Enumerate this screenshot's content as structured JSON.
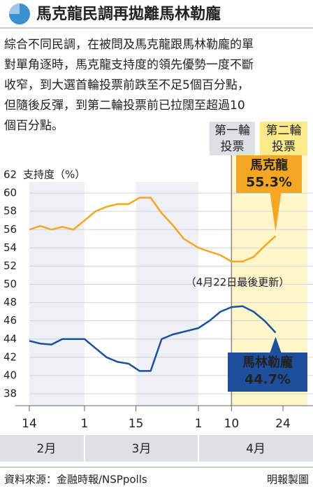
{
  "header": {
    "title": "馬克龍民調再拋離馬林勒龐"
  },
  "paragraph": [
    "綜合不同民調，在被問及馬克龍跟馬林勒龐的單",
    "對單角逐時，馬克龍支持度的領先優勢一度不斷",
    "收窄，到大選首輪投票前跌至不足5個百分點，",
    "但隨後反彈，到第二輪投票前已拉闊至超過10",
    "個百分點。"
  ],
  "chart_data": {
    "type": "line",
    "y_axis_label": "支持度（%）",
    "x": [
      "02-14",
      "02-17",
      "02-20",
      "02-23",
      "02-26",
      "03-01",
      "03-04",
      "03-07",
      "03-10",
      "03-13",
      "03-16",
      "03-19",
      "03-22",
      "03-25",
      "03-28",
      "04-01",
      "04-04",
      "04-07",
      "04-10",
      "04-13",
      "04-16",
      "04-19",
      "04-22"
    ],
    "series": [
      {
        "name": "馬克龍",
        "color": "#f5a623",
        "values": [
          56.0,
          56.4,
          56.0,
          56.3,
          56.0,
          57.0,
          58.0,
          58.5,
          58.8,
          58.8,
          59.5,
          59.5,
          57.8,
          56.5,
          55.0,
          54.0,
          53.6,
          53.2,
          52.5,
          52.5,
          53.0,
          54.2,
          55.3
        ],
        "value_labels": {
          "22": "55.3%"
        }
      },
      {
        "name": "馬林勒龐",
        "color": "#1d4f9c",
        "values": [
          43.8,
          43.5,
          43.4,
          44.0,
          44.0,
          44.0,
          43.0,
          42.0,
          41.5,
          41.3,
          40.5,
          40.5,
          44.0,
          44.5,
          44.8,
          45.2,
          46.0,
          47.0,
          47.5,
          47.6,
          47.0,
          46.0,
          44.7
        ],
        "value_labels": {
          "22": "44.7%"
        }
      }
    ],
    "ylim": [
      38,
      62
    ],
    "yticks": [
      38,
      40,
      42,
      44,
      46,
      48,
      50,
      52,
      54,
      56,
      58,
      60,
      62
    ],
    "xticks": [
      {
        "value": "02-14",
        "label": "14"
      },
      {
        "value": "03-01",
        "label": "1"
      },
      {
        "value": "03-15",
        "label": "15"
      },
      {
        "value": "04-01",
        "label": "1"
      },
      {
        "value": "04-10",
        "label": "10"
      },
      {
        "value": "04-24",
        "label": "24"
      }
    ],
    "months": [
      "2月",
      "3月",
      "4月"
    ],
    "round_labels": [
      [
        "第一輪",
        "投票"
      ],
      [
        "第二輪",
        "投票"
      ]
    ],
    "note": "（4月22日最後更新）",
    "grid": true
  },
  "footer": {
    "source": "資料來源：金融時報/NSPpolls",
    "credit": "明報製圖"
  }
}
